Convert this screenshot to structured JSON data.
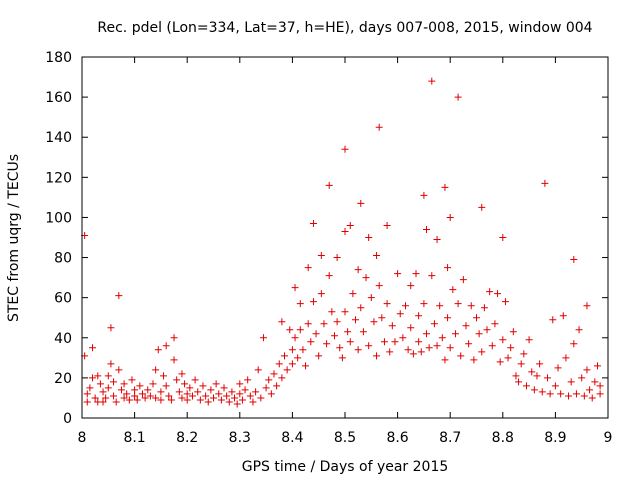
{
  "chart_data": {
    "type": "scatter",
    "title": "Rec. pdel (Lon=334, Lat=37, h=HE), days 007-008, 2015, window 004",
    "xlabel": "GPS time / Days of year 2015",
    "ylabel": "STEC from uqrg / TECUs",
    "xlim": [
      8,
      9
    ],
    "ylim": [
      0,
      180
    ],
    "xticks": [
      8,
      8.1,
      8.2,
      8.3,
      8.4,
      8.5,
      8.6,
      8.7,
      8.8,
      8.9,
      9
    ],
    "xtick_labels": [
      "8",
      "8.1",
      "8.2",
      "8.3",
      "8.4",
      "8.5",
      "8.6",
      "8.7",
      "8.8",
      "8.9",
      "9"
    ],
    "yticks": [
      0,
      20,
      40,
      60,
      80,
      100,
      120,
      140,
      160,
      180
    ],
    "ytick_labels": [
      "0",
      "20",
      "40",
      "60",
      "80",
      "100",
      "120",
      "140",
      "160",
      "180"
    ],
    "grid": false,
    "marker": "plus",
    "color": "#e00000",
    "series": [
      {
        "name": "STEC",
        "points": [
          [
            8.005,
            91
          ],
          [
            8.005,
            31
          ],
          [
            8.01,
            12
          ],
          [
            8.01,
            8
          ],
          [
            8.015,
            15
          ],
          [
            8.02,
            35
          ],
          [
            8.02,
            20
          ],
          [
            8.025,
            10
          ],
          [
            8.03,
            8
          ],
          [
            8.03,
            21
          ],
          [
            8.035,
            17
          ],
          [
            8.04,
            13
          ],
          [
            8.04,
            8
          ],
          [
            8.045,
            10
          ],
          [
            8.05,
            21
          ],
          [
            8.05,
            15
          ],
          [
            8.055,
            45
          ],
          [
            8.055,
            27
          ],
          [
            8.06,
            18
          ],
          [
            8.06,
            11
          ],
          [
            8.065,
            8
          ],
          [
            8.07,
            61
          ],
          [
            8.07,
            24
          ],
          [
            8.075,
            14
          ],
          [
            8.08,
            10
          ],
          [
            8.08,
            17
          ],
          [
            8.085,
            12
          ],
          [
            8.09,
            9
          ],
          [
            8.095,
            19
          ],
          [
            8.1,
            14
          ],
          [
            8.1,
            11
          ],
          [
            8.105,
            9
          ],
          [
            8.11,
            16
          ],
          [
            8.115,
            12
          ],
          [
            8.12,
            10
          ],
          [
            8.125,
            14
          ],
          [
            8.13,
            11
          ],
          [
            8.135,
            17
          ],
          [
            8.14,
            24
          ],
          [
            8.14,
            10
          ],
          [
            8.145,
            34
          ],
          [
            8.15,
            13
          ],
          [
            8.15,
            9
          ],
          [
            8.155,
            21
          ],
          [
            8.16,
            36
          ],
          [
            8.16,
            16
          ],
          [
            8.165,
            11
          ],
          [
            8.17,
            9
          ],
          [
            8.175,
            40
          ],
          [
            8.175,
            29
          ],
          [
            8.18,
            19
          ],
          [
            8.185,
            13
          ],
          [
            8.19,
            10
          ],
          [
            8.19,
            22
          ],
          [
            8.195,
            17
          ],
          [
            8.2,
            12
          ],
          [
            8.2,
            9
          ],
          [
            8.205,
            15
          ],
          [
            8.21,
            11
          ],
          [
            8.215,
            19
          ],
          [
            8.22,
            13
          ],
          [
            8.225,
            9
          ],
          [
            8.23,
            16
          ],
          [
            8.235,
            11
          ],
          [
            8.24,
            8
          ],
          [
            8.245,
            14
          ],
          [
            8.25,
            10
          ],
          [
            8.255,
            17
          ],
          [
            8.26,
            12
          ],
          [
            8.265,
            9
          ],
          [
            8.27,
            15
          ],
          [
            8.275,
            11
          ],
          [
            8.28,
            8
          ],
          [
            8.285,
            13
          ],
          [
            8.29,
            10
          ],
          [
            8.295,
            7
          ],
          [
            8.3,
            12
          ],
          [
            8.3,
            17
          ],
          [
            8.305,
            9
          ],
          [
            8.31,
            14
          ],
          [
            8.315,
            19
          ],
          [
            8.32,
            11
          ],
          [
            8.325,
            8
          ],
          [
            8.33,
            13
          ],
          [
            8.335,
            24
          ],
          [
            8.34,
            10
          ],
          [
            8.345,
            40
          ],
          [
            8.35,
            15
          ],
          [
            8.355,
            19
          ],
          [
            8.36,
            12
          ],
          [
            8.365,
            22
          ],
          [
            8.37,
            16
          ],
          [
            8.375,
            27
          ],
          [
            8.38,
            48
          ],
          [
            8.38,
            20
          ],
          [
            8.385,
            31
          ],
          [
            8.39,
            24
          ],
          [
            8.395,
            44
          ],
          [
            8.4,
            34
          ],
          [
            8.4,
            27
          ],
          [
            8.405,
            65
          ],
          [
            8.405,
            40
          ],
          [
            8.41,
            30
          ],
          [
            8.415,
            57
          ],
          [
            8.415,
            44
          ],
          [
            8.42,
            34
          ],
          [
            8.425,
            26
          ],
          [
            8.43,
            75
          ],
          [
            8.43,
            47
          ],
          [
            8.435,
            38
          ],
          [
            8.44,
            97
          ],
          [
            8.44,
            58
          ],
          [
            8.445,
            42
          ],
          [
            8.45,
            31
          ],
          [
            8.455,
            81
          ],
          [
            8.455,
            62
          ],
          [
            8.46,
            47
          ],
          [
            8.465,
            37
          ],
          [
            8.47,
            116
          ],
          [
            8.47,
            71
          ],
          [
            8.475,
            53
          ],
          [
            8.48,
            41
          ],
          [
            8.485,
            80
          ],
          [
            8.485,
            48
          ],
          [
            8.49,
            35
          ],
          [
            8.495,
            30
          ],
          [
            8.5,
            134
          ],
          [
            8.5,
            93
          ],
          [
            8.5,
            53
          ],
          [
            8.505,
            43
          ],
          [
            8.51,
            96
          ],
          [
            8.51,
            38
          ],
          [
            8.515,
            62
          ],
          [
            8.52,
            49
          ],
          [
            8.525,
            74
          ],
          [
            8.525,
            34
          ],
          [
            8.53,
            107
          ],
          [
            8.53,
            55
          ],
          [
            8.535,
            43
          ],
          [
            8.54,
            70
          ],
          [
            8.545,
            90
          ],
          [
            8.545,
            36
          ],
          [
            8.55,
            60
          ],
          [
            8.555,
            48
          ],
          [
            8.56,
            81
          ],
          [
            8.56,
            31
          ],
          [
            8.565,
            145
          ],
          [
            8.565,
            66
          ],
          [
            8.57,
            50
          ],
          [
            8.575,
            38
          ],
          [
            8.58,
            96
          ],
          [
            8.58,
            57
          ],
          [
            8.585,
            33
          ],
          [
            8.59,
            46
          ],
          [
            8.595,
            38
          ],
          [
            8.6,
            72
          ],
          [
            8.605,
            52
          ],
          [
            8.61,
            40
          ],
          [
            8.615,
            56
          ],
          [
            8.62,
            34
          ],
          [
            8.625,
            66
          ],
          [
            8.625,
            45
          ],
          [
            8.63,
            32
          ],
          [
            8.635,
            72
          ],
          [
            8.64,
            51
          ],
          [
            8.64,
            38
          ],
          [
            8.645,
            33
          ],
          [
            8.65,
            111
          ],
          [
            8.65,
            57
          ],
          [
            8.655,
            94
          ],
          [
            8.655,
            42
          ],
          [
            8.66,
            35
          ],
          [
            8.665,
            168
          ],
          [
            8.665,
            71
          ],
          [
            8.67,
            47
          ],
          [
            8.675,
            89
          ],
          [
            8.675,
            36
          ],
          [
            8.68,
            56
          ],
          [
            8.685,
            40
          ],
          [
            8.69,
            115
          ],
          [
            8.69,
            29
          ],
          [
            8.695,
            75
          ],
          [
            8.695,
            50
          ],
          [
            8.7,
            100
          ],
          [
            8.7,
            35
          ],
          [
            8.705,
            64
          ],
          [
            8.71,
            42
          ],
          [
            8.715,
            160
          ],
          [
            8.715,
            57
          ],
          [
            8.72,
            31
          ],
          [
            8.725,
            69
          ],
          [
            8.73,
            46
          ],
          [
            8.735,
            37
          ],
          [
            8.74,
            56
          ],
          [
            8.745,
            29
          ],
          [
            8.75,
            50
          ],
          [
            8.755,
            42
          ],
          [
            8.76,
            105
          ],
          [
            8.76,
            33
          ],
          [
            8.765,
            55
          ],
          [
            8.77,
            44
          ],
          [
            8.775,
            63
          ],
          [
            8.78,
            36
          ],
          [
            8.785,
            47
          ],
          [
            8.79,
            62
          ],
          [
            8.795,
            28
          ],
          [
            8.8,
            90
          ],
          [
            8.8,
            39
          ],
          [
            8.805,
            58
          ],
          [
            8.81,
            30
          ],
          [
            8.815,
            35
          ],
          [
            8.82,
            43
          ],
          [
            8.825,
            21
          ],
          [
            8.83,
            18
          ],
          [
            8.835,
            27
          ],
          [
            8.84,
            32
          ],
          [
            8.845,
            16
          ],
          [
            8.85,
            39
          ],
          [
            8.855,
            23
          ],
          [
            8.86,
            14
          ],
          [
            8.865,
            21
          ],
          [
            8.87,
            27
          ],
          [
            8.875,
            13
          ],
          [
            8.88,
            117
          ],
          [
            8.885,
            20
          ],
          [
            8.89,
            12
          ],
          [
            8.895,
            49
          ],
          [
            8.9,
            16
          ],
          [
            8.905,
            25
          ],
          [
            8.91,
            12
          ],
          [
            8.915,
            51
          ],
          [
            8.92,
            30
          ],
          [
            8.925,
            11
          ],
          [
            8.93,
            18
          ],
          [
            8.935,
            79
          ],
          [
            8.935,
            37
          ],
          [
            8.94,
            12
          ],
          [
            8.945,
            44
          ],
          [
            8.95,
            20
          ],
          [
            8.955,
            11
          ],
          [
            8.96,
            56
          ],
          [
            8.96,
            24
          ],
          [
            8.965,
            14
          ],
          [
            8.97,
            10
          ],
          [
            8.975,
            18
          ],
          [
            8.98,
            26
          ],
          [
            8.985,
            12
          ],
          [
            8.985,
            16
          ]
        ]
      }
    ]
  }
}
